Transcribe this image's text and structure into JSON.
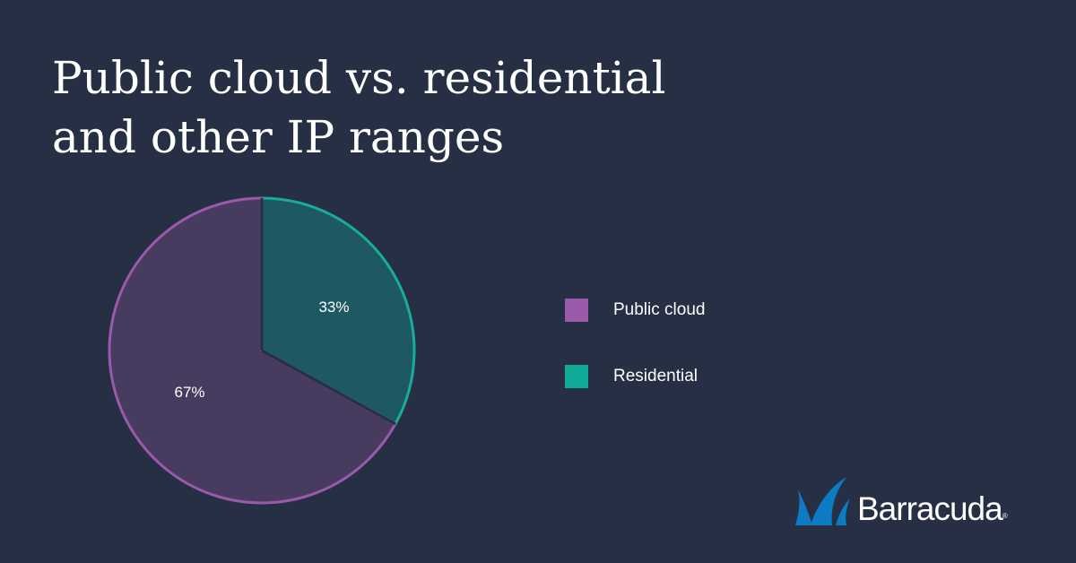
{
  "chart_data": {
    "type": "pie",
    "title_lines": [
      "Public cloud vs. residential",
      "and other IP ranges"
    ],
    "slices": [
      {
        "label": "Public cloud",
        "value": 67,
        "display": "67%",
        "fill": "#473b60",
        "stroke": "#9a5aab",
        "legend_color": "#9a5aab"
      },
      {
        "label": "Residential",
        "value": 33,
        "display": "33%",
        "fill": "#1e5862",
        "stroke": "#17ad98",
        "legend_color": "#10ac97"
      }
    ],
    "legend_position": "right"
  },
  "brand": {
    "name": "Barracuda",
    "trademark": "®",
    "primary_color": "#0d7bc4"
  },
  "background_color": "#262f44"
}
